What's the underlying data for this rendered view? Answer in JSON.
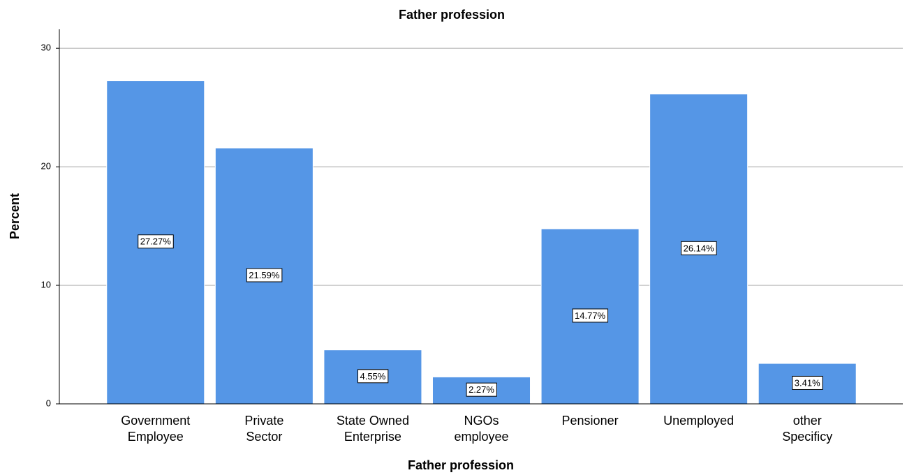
{
  "chart_data": {
    "type": "bar",
    "title": "Father profession",
    "x_label": "Father profession",
    "y_label": "Percent",
    "categories": [
      [
        "Government",
        "Employee"
      ],
      [
        "Private",
        "Sector"
      ],
      [
        "State Owned",
        "Enterprise"
      ],
      [
        "NGOs",
        "employee"
      ],
      [
        "Pensioner"
      ],
      [
        "Unemployed"
      ],
      [
        "other",
        "Specificy"
      ]
    ],
    "values": [
      27.27,
      21.59,
      4.55,
      2.27,
      14.77,
      26.14,
      3.41
    ],
    "value_labels": [
      "27.27%",
      "21.59%",
      "4.55%",
      "2.27%",
      "14.77%",
      "26.14%",
      "3.41%"
    ],
    "color": "#5596e6",
    "ylim": [
      0,
      31.6
    ],
    "yticks": [
      0,
      10,
      20,
      30
    ],
    "grid": true
  }
}
